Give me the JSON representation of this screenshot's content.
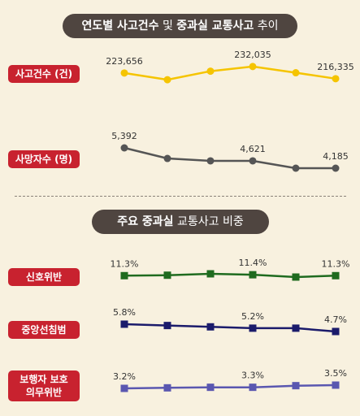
{
  "section1": {
    "title_bold": "연도별 사고건수",
    "title_rest": " 및 ",
    "title_bold2": "중과실 교통사고",
    "title_end": " 추이"
  },
  "section2": {
    "title_bold": "주요 중과실",
    "title_rest": " 교통사고 비중"
  },
  "chart_data": [
    {
      "type": "line",
      "series": [
        {
          "name": "사고건수 (건)",
          "color": "#f5c400",
          "values": [
            223656,
            215000,
            226000,
            232035,
            224000,
            216335
          ],
          "labels": [
            "223,656",
            "",
            "",
            "232,035",
            "",
            "216,335"
          ]
        },
        {
          "name": "사망자수 (명)",
          "color": "#555555",
          "values": [
            5392,
            4762,
            4621,
            4621,
            4185,
            4185
          ],
          "labels": [
            "5,392",
            "",
            "",
            "4,621",
            "",
            "4,185"
          ]
        }
      ]
    },
    {
      "type": "line",
      "series": [
        {
          "name": "신호위반",
          "color": "#1f6b1f",
          "values": [
            11.3,
            11.35,
            11.5,
            11.4,
            11.15,
            11.3
          ],
          "labels": [
            "11.3%",
            "",
            "",
            "11.4%",
            "",
            "11.3%"
          ]
        },
        {
          "name": "중앙선침범",
          "color": "#1b1b6b",
          "values": [
            5.8,
            5.6,
            5.4,
            5.2,
            5.2,
            4.7
          ],
          "labels": [
            "5.8%",
            "",
            "",
            "5.2%",
            "",
            "4.7%"
          ]
        },
        {
          "name_line1": "보행자 보호",
          "name_line2": "의무위반",
          "color": "#5a57b0",
          "values": [
            3.2,
            3.25,
            3.3,
            3.3,
            3.45,
            3.5
          ],
          "labels": [
            "3.2%",
            "",
            "",
            "3.3%",
            "",
            "3.5%"
          ]
        }
      ]
    }
  ]
}
